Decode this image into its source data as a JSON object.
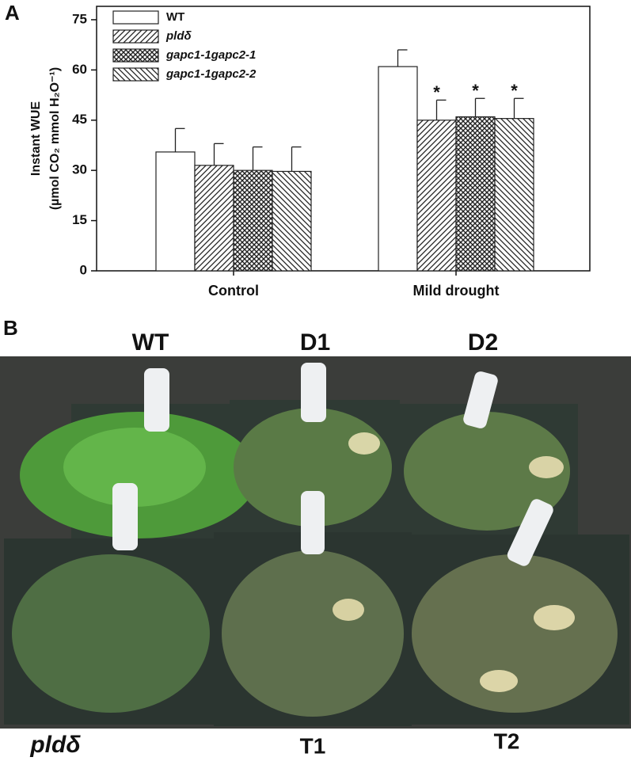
{
  "chart_data": {
    "type": "bar",
    "panel_label": "A",
    "ylabel": "Instant WUE",
    "ylabel_units": "(µmol CO₂ mmol H₂O⁻¹)",
    "categories": [
      "Control",
      "Mild drought"
    ],
    "series": [
      {
        "name": "WT",
        "color": "#ffffff",
        "pattern": "none",
        "values": [
          35.5,
          61
        ],
        "errors": [
          7,
          5
        ]
      },
      {
        "name": "pldδ",
        "color": "#ffffff",
        "pattern": "forward",
        "values": [
          31.5,
          45
        ],
        "errors": [
          6.5,
          6
        ],
        "labels": [
          null,
          "*"
        ]
      },
      {
        "name": "gapc1-1gapc2-1",
        "color": "#ffffff",
        "pattern": "cross",
        "values": [
          30,
          46
        ],
        "errors": [
          7,
          5.5
        ],
        "labels": [
          null,
          "*"
        ]
      },
      {
        "name": "gapc1-1gapc2-2",
        "color": "#ffffff",
        "pattern": "back",
        "values": [
          29.7,
          45.5
        ],
        "errors": [
          7.3,
          6
        ],
        "labels": [
          null,
          "*"
        ]
      }
    ],
    "ylim": [
      0,
      79
    ],
    "yticks": [
      0,
      15,
      30,
      45,
      60,
      75
    ],
    "legend": "upper left"
  },
  "photo": {
    "panel_label": "B",
    "labels": [
      "WT",
      "D1",
      "D2",
      "pldδ",
      "T1",
      "T2"
    ]
  }
}
